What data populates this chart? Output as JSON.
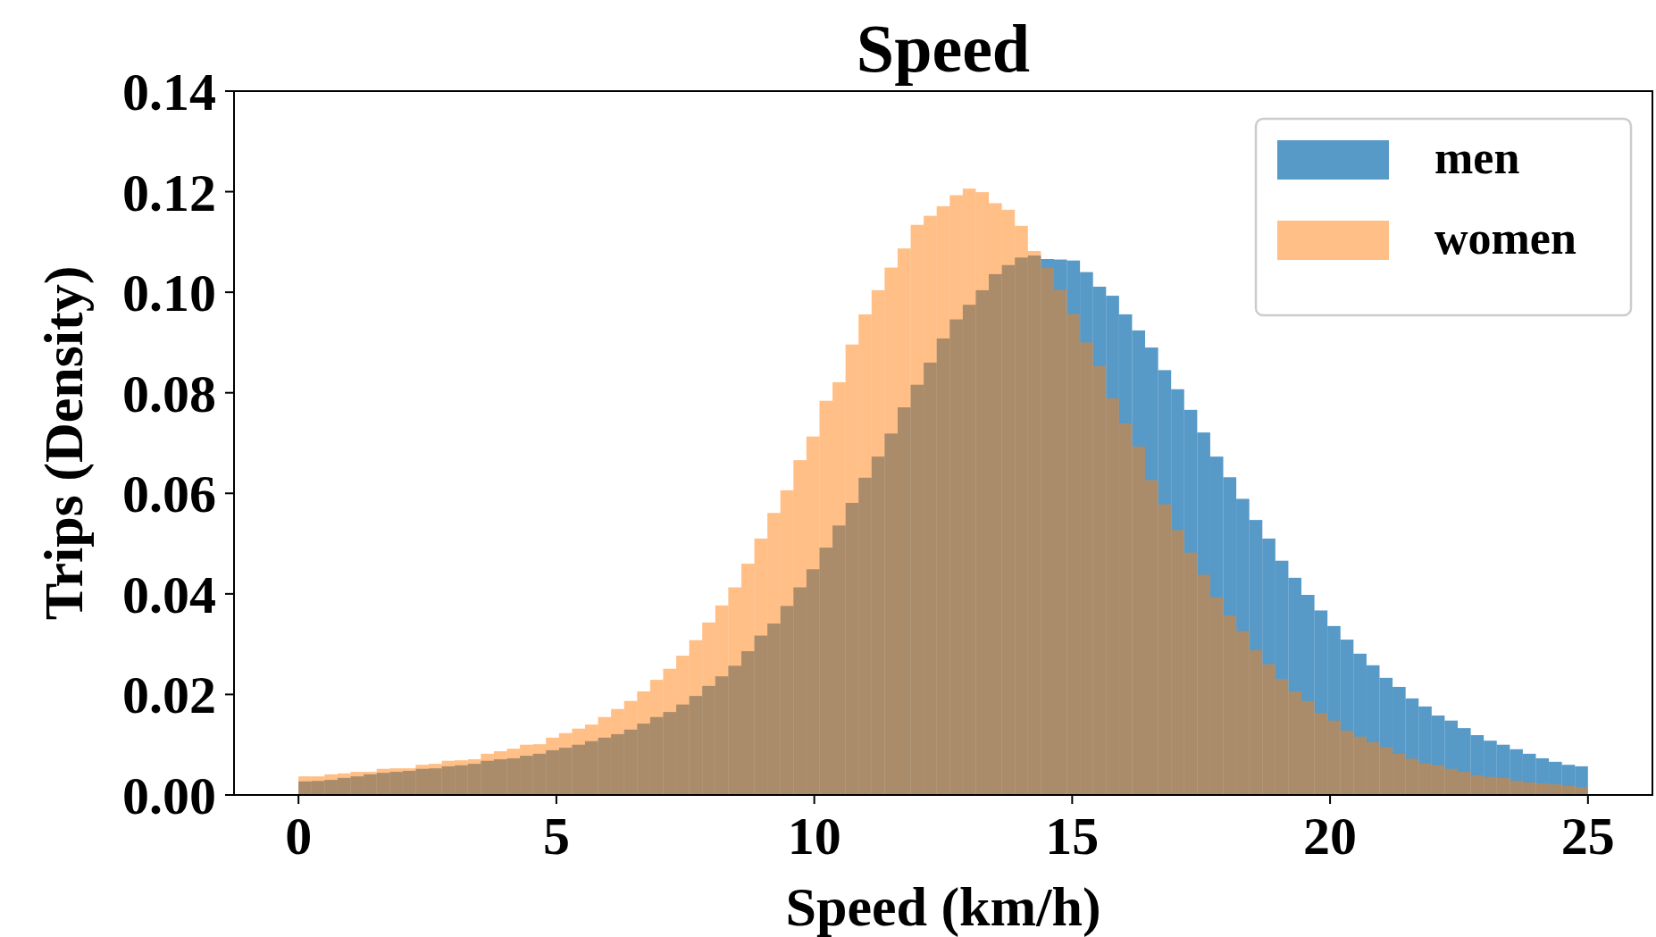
{
  "chart_data": {
    "type": "histogram",
    "title": "Speed",
    "xlabel": "Speed (km/h)",
    "ylabel": "Trips (Density)",
    "bins": [
      0,
      0.2525,
      0.5051,
      0.7576,
      1.0101,
      1.2626,
      1.5152,
      1.7677,
      2.0202,
      2.2727,
      2.5253,
      2.7778,
      3.0303,
      3.2828,
      3.5354,
      3.7879,
      4.0404,
      4.2929,
      4.5455,
      4.798,
      5.0505,
      5.303,
      5.5556,
      5.8081,
      6.0606,
      6.3131,
      6.5657,
      6.8182,
      7.0707,
      7.3232,
      7.5758,
      7.8283,
      8.0808,
      8.3333,
      8.5859,
      8.8384,
      9.0909,
      9.3434,
      9.596,
      9.8485,
      10.101,
      10.3535,
      10.6061,
      10.8586,
      11.1111,
      11.3636,
      11.6162,
      11.8687,
      12.1212,
      12.3737,
      12.6263,
      12.8788,
      13.1313,
      13.3838,
      13.6364,
      13.8889,
      14.1414,
      14.3939,
      14.6465,
      14.899,
      15.1515,
      15.404,
      15.6566,
      15.9091,
      16.1616,
      16.4141,
      16.6667,
      16.9192,
      17.1717,
      17.4242,
      17.6768,
      17.9293,
      18.1818,
      18.4343,
      18.6869,
      18.9394,
      19.1919,
      19.4444,
      19.697,
      19.9495,
      20.202,
      20.4545,
      20.7071,
      20.9596,
      21.2121,
      21.4646,
      21.7172,
      21.9697,
      22.2222,
      22.4747,
      22.7273,
      22.9798,
      23.2323,
      23.4848,
      23.7374,
      23.9899,
      24.2424,
      24.4949,
      24.7475,
      25
    ],
    "series": [
      {
        "name": "men",
        "color": "#1f77b4",
        "values": [
          0.0027,
          0.0028,
          0.003,
          0.0034,
          0.0037,
          0.0041,
          0.0044,
          0.0046,
          0.0048,
          0.0052,
          0.0053,
          0.0057,
          0.0059,
          0.0062,
          0.0068,
          0.0071,
          0.0073,
          0.0078,
          0.0082,
          0.0089,
          0.0094,
          0.01,
          0.0107,
          0.0114,
          0.0121,
          0.013,
          0.0142,
          0.0155,
          0.0165,
          0.018,
          0.0197,
          0.0217,
          0.0236,
          0.0257,
          0.0286,
          0.0317,
          0.0341,
          0.0376,
          0.0413,
          0.0449,
          0.0492,
          0.0536,
          0.0581,
          0.0631,
          0.0673,
          0.0719,
          0.0771,
          0.0816,
          0.086,
          0.0908,
          0.0946,
          0.0975,
          0.1004,
          0.1036,
          0.1054,
          0.1069,
          0.1073,
          0.1066,
          0.1065,
          0.1063,
          0.104,
          0.1011,
          0.0993,
          0.0956,
          0.0924,
          0.089,
          0.0845,
          0.0807,
          0.0766,
          0.0721,
          0.0673,
          0.0632,
          0.0589,
          0.0547,
          0.051,
          0.0466,
          0.0432,
          0.0398,
          0.0367,
          0.0336,
          0.0309,
          0.0281,
          0.0258,
          0.0233,
          0.0215,
          0.0192,
          0.0176,
          0.0158,
          0.0148,
          0.0133,
          0.0119,
          0.0108,
          0.01,
          0.0091,
          0.0082,
          0.0073,
          0.0066,
          0.006,
          0.0057
        ]
      },
      {
        "name": "women",
        "color": "#ff7f0e",
        "values": [
          0.0037,
          0.0037,
          0.0041,
          0.0043,
          0.0046,
          0.0046,
          0.0052,
          0.0053,
          0.0053,
          0.006,
          0.0062,
          0.0068,
          0.0069,
          0.0071,
          0.0082,
          0.0087,
          0.0092,
          0.01,
          0.0101,
          0.0114,
          0.0123,
          0.0132,
          0.014,
          0.0155,
          0.0171,
          0.0187,
          0.0206,
          0.0229,
          0.0251,
          0.0277,
          0.0308,
          0.0343,
          0.0377,
          0.0413,
          0.046,
          0.051,
          0.0561,
          0.0606,
          0.0666,
          0.0713,
          0.0784,
          0.0821,
          0.0896,
          0.0956,
          0.1004,
          0.1049,
          0.1087,
          0.1134,
          0.1152,
          0.1171,
          0.1193,
          0.1206,
          0.1199,
          0.1177,
          0.1164,
          0.1132,
          0.1082,
          0.1049,
          0.1005,
          0.0957,
          0.09,
          0.0853,
          0.0789,
          0.0739,
          0.0693,
          0.0626,
          0.0578,
          0.0527,
          0.0482,
          0.0438,
          0.0393,
          0.0357,
          0.0326,
          0.0288,
          0.026,
          0.0231,
          0.0206,
          0.0187,
          0.0163,
          0.0148,
          0.0128,
          0.0116,
          0.0105,
          0.0095,
          0.0082,
          0.0072,
          0.0063,
          0.0059,
          0.0052,
          0.0046,
          0.0039,
          0.0036,
          0.0034,
          0.0028,
          0.0025,
          0.0023,
          0.0021,
          0.0018,
          0.0016
        ]
      }
    ],
    "xlim": [
      -1.25,
      26.25
    ],
    "ylim": [
      0,
      0.14
    ],
    "xticks": [
      0,
      5,
      10,
      15,
      20,
      25
    ],
    "yticks": [
      {
        "value": 0,
        "label": "0.00"
      },
      {
        "value": 0.02,
        "label": "0.02"
      },
      {
        "value": 0.04,
        "label": "0.04"
      },
      {
        "value": 0.06,
        "label": "0.06"
      },
      {
        "value": 0.08,
        "label": "0.08"
      },
      {
        "value": 0.1,
        "label": "0.10"
      },
      {
        "value": 0.12,
        "label": "0.12"
      },
      {
        "value": 0.14,
        "label": "0.14"
      }
    ],
    "legend": "top right",
    "grid": false
  }
}
